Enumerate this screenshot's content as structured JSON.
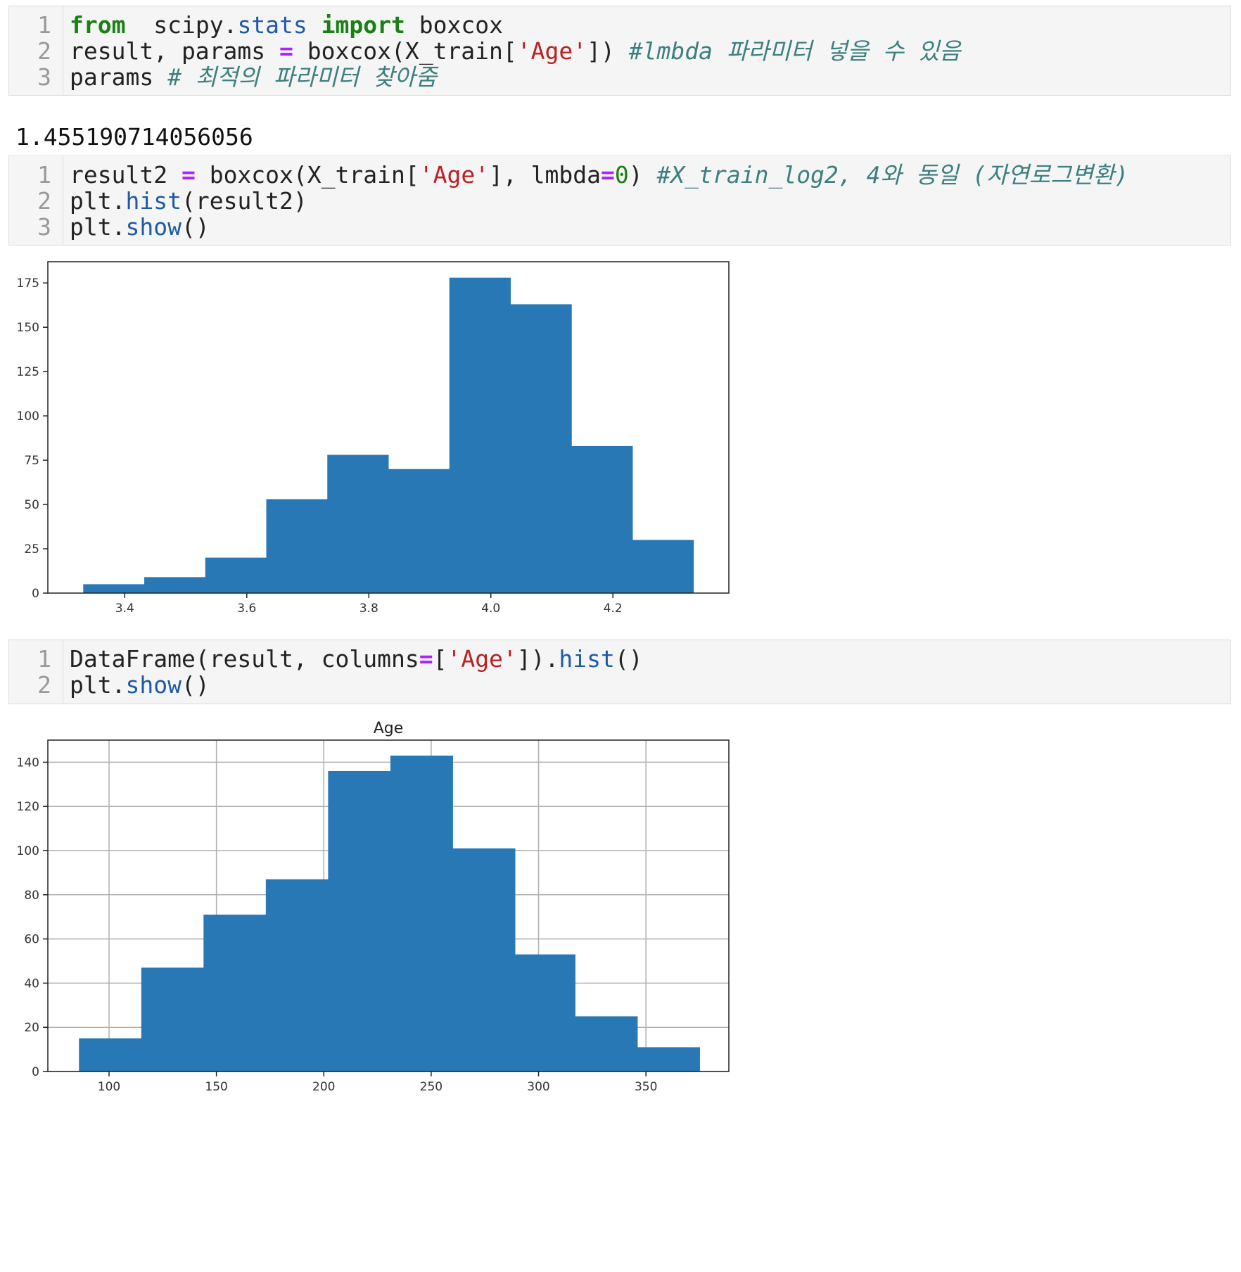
{
  "cells": [
    {
      "lines": [
        {
          "ln": "1",
          "tokens": [
            [
              "kw",
              "from"
            ],
            [
              "",
              "  scipy."
            ],
            [
              "attr",
              "stats"
            ],
            [
              "",
              " "
            ],
            [
              "kw",
              "import"
            ],
            [
              "",
              " boxcox"
            ]
          ]
        },
        {
          "ln": "2",
          "tokens": [
            [
              "",
              "result, params "
            ],
            [
              "op",
              "="
            ],
            [
              "",
              " boxcox(X_train["
            ],
            [
              "str",
              "'Age'"
            ],
            [
              "",
              "]) "
            ],
            [
              "cm",
              "#lmbda 파라미터 넣을 수 있음"
            ]
          ]
        },
        {
          "ln": "3",
          "tokens": [
            [
              "",
              "params "
            ],
            [
              "cm",
              "# 최적의 파라미터 찾아줌"
            ]
          ]
        }
      ]
    },
    {
      "lines": [
        {
          "ln": "1",
          "tokens": [
            [
              "",
              "result2 "
            ],
            [
              "op",
              "="
            ],
            [
              "",
              " boxcox(X_train["
            ],
            [
              "str",
              "'Age'"
            ],
            [
              "",
              "], lmbda"
            ],
            [
              "op",
              "="
            ],
            [
              "num",
              "0"
            ],
            [
              "",
              ") "
            ],
            [
              "cm",
              "#X_train_log2, 4와 동일 (자연로그변환)"
            ]
          ]
        },
        {
          "ln": "2",
          "tokens": [
            [
              "",
              "plt."
            ],
            [
              "attr",
              "hist"
            ],
            [
              "",
              "(result2)"
            ]
          ]
        },
        {
          "ln": "3",
          "tokens": [
            [
              "",
              "plt."
            ],
            [
              "attr",
              "show"
            ],
            [
              "",
              "()"
            ]
          ]
        }
      ]
    },
    {
      "lines": [
        {
          "ln": "1",
          "tokens": [
            [
              "",
              "DataFrame(result, columns"
            ],
            [
              "op",
              "="
            ],
            [
              "",
              "["
            ],
            [
              "str",
              "'Age'"
            ],
            [
              "",
              "])."
            ],
            [
              "attr",
              "hist"
            ],
            [
              "",
              "()"
            ]
          ]
        },
        {
          "ln": "2",
          "tokens": [
            [
              "",
              "plt."
            ],
            [
              "attr",
              "show"
            ],
            [
              "",
              "()"
            ]
          ]
        }
      ]
    }
  ],
  "output_value": "1.455190714056056",
  "chart_data": [
    {
      "type": "bar",
      "title": "",
      "xlabel": "",
      "ylabel": "",
      "bins": [
        [
          3.332,
          3.432,
          5
        ],
        [
          3.432,
          3.532,
          9
        ],
        [
          3.532,
          3.632,
          20
        ],
        [
          3.632,
          3.732,
          53
        ],
        [
          3.732,
          3.832,
          78
        ],
        [
          3.832,
          3.932,
          70
        ],
        [
          3.932,
          4.032,
          178
        ],
        [
          4.032,
          4.132,
          163
        ],
        [
          4.132,
          4.232,
          83
        ],
        [
          4.232,
          4.332,
          30
        ]
      ],
      "xlim": [
        3.274,
        4.39
      ],
      "ylim": [
        0,
        187
      ],
      "xticks": [
        "3.4",
        "3.6",
        "3.8",
        "4.0",
        "4.2"
      ],
      "yticks": [
        "0",
        "25",
        "50",
        "75",
        "100",
        "125",
        "150",
        "175"
      ],
      "grid": false,
      "bar_color": "#2878b5"
    },
    {
      "type": "bar",
      "title": "Age",
      "xlabel": "",
      "ylabel": "",
      "bins": [
        [
          86,
          115,
          15
        ],
        [
          115,
          144,
          47
        ],
        [
          144,
          173,
          71
        ],
        [
          173,
          202,
          87
        ],
        [
          202,
          231,
          136
        ],
        [
          231,
          260,
          143
        ],
        [
          260,
          289,
          101
        ],
        [
          289,
          317,
          53
        ],
        [
          317,
          346,
          25
        ],
        [
          346,
          375,
          11
        ]
      ],
      "xlim": [
        71.5,
        388.6
      ],
      "ylim": [
        0,
        150
      ],
      "xticks": [
        "100",
        "150",
        "200",
        "250",
        "300",
        "350"
      ],
      "yticks": [
        "0",
        "20",
        "40",
        "60",
        "80",
        "100",
        "120",
        "140"
      ],
      "grid": true,
      "bar_color": "#2878b5"
    }
  ]
}
